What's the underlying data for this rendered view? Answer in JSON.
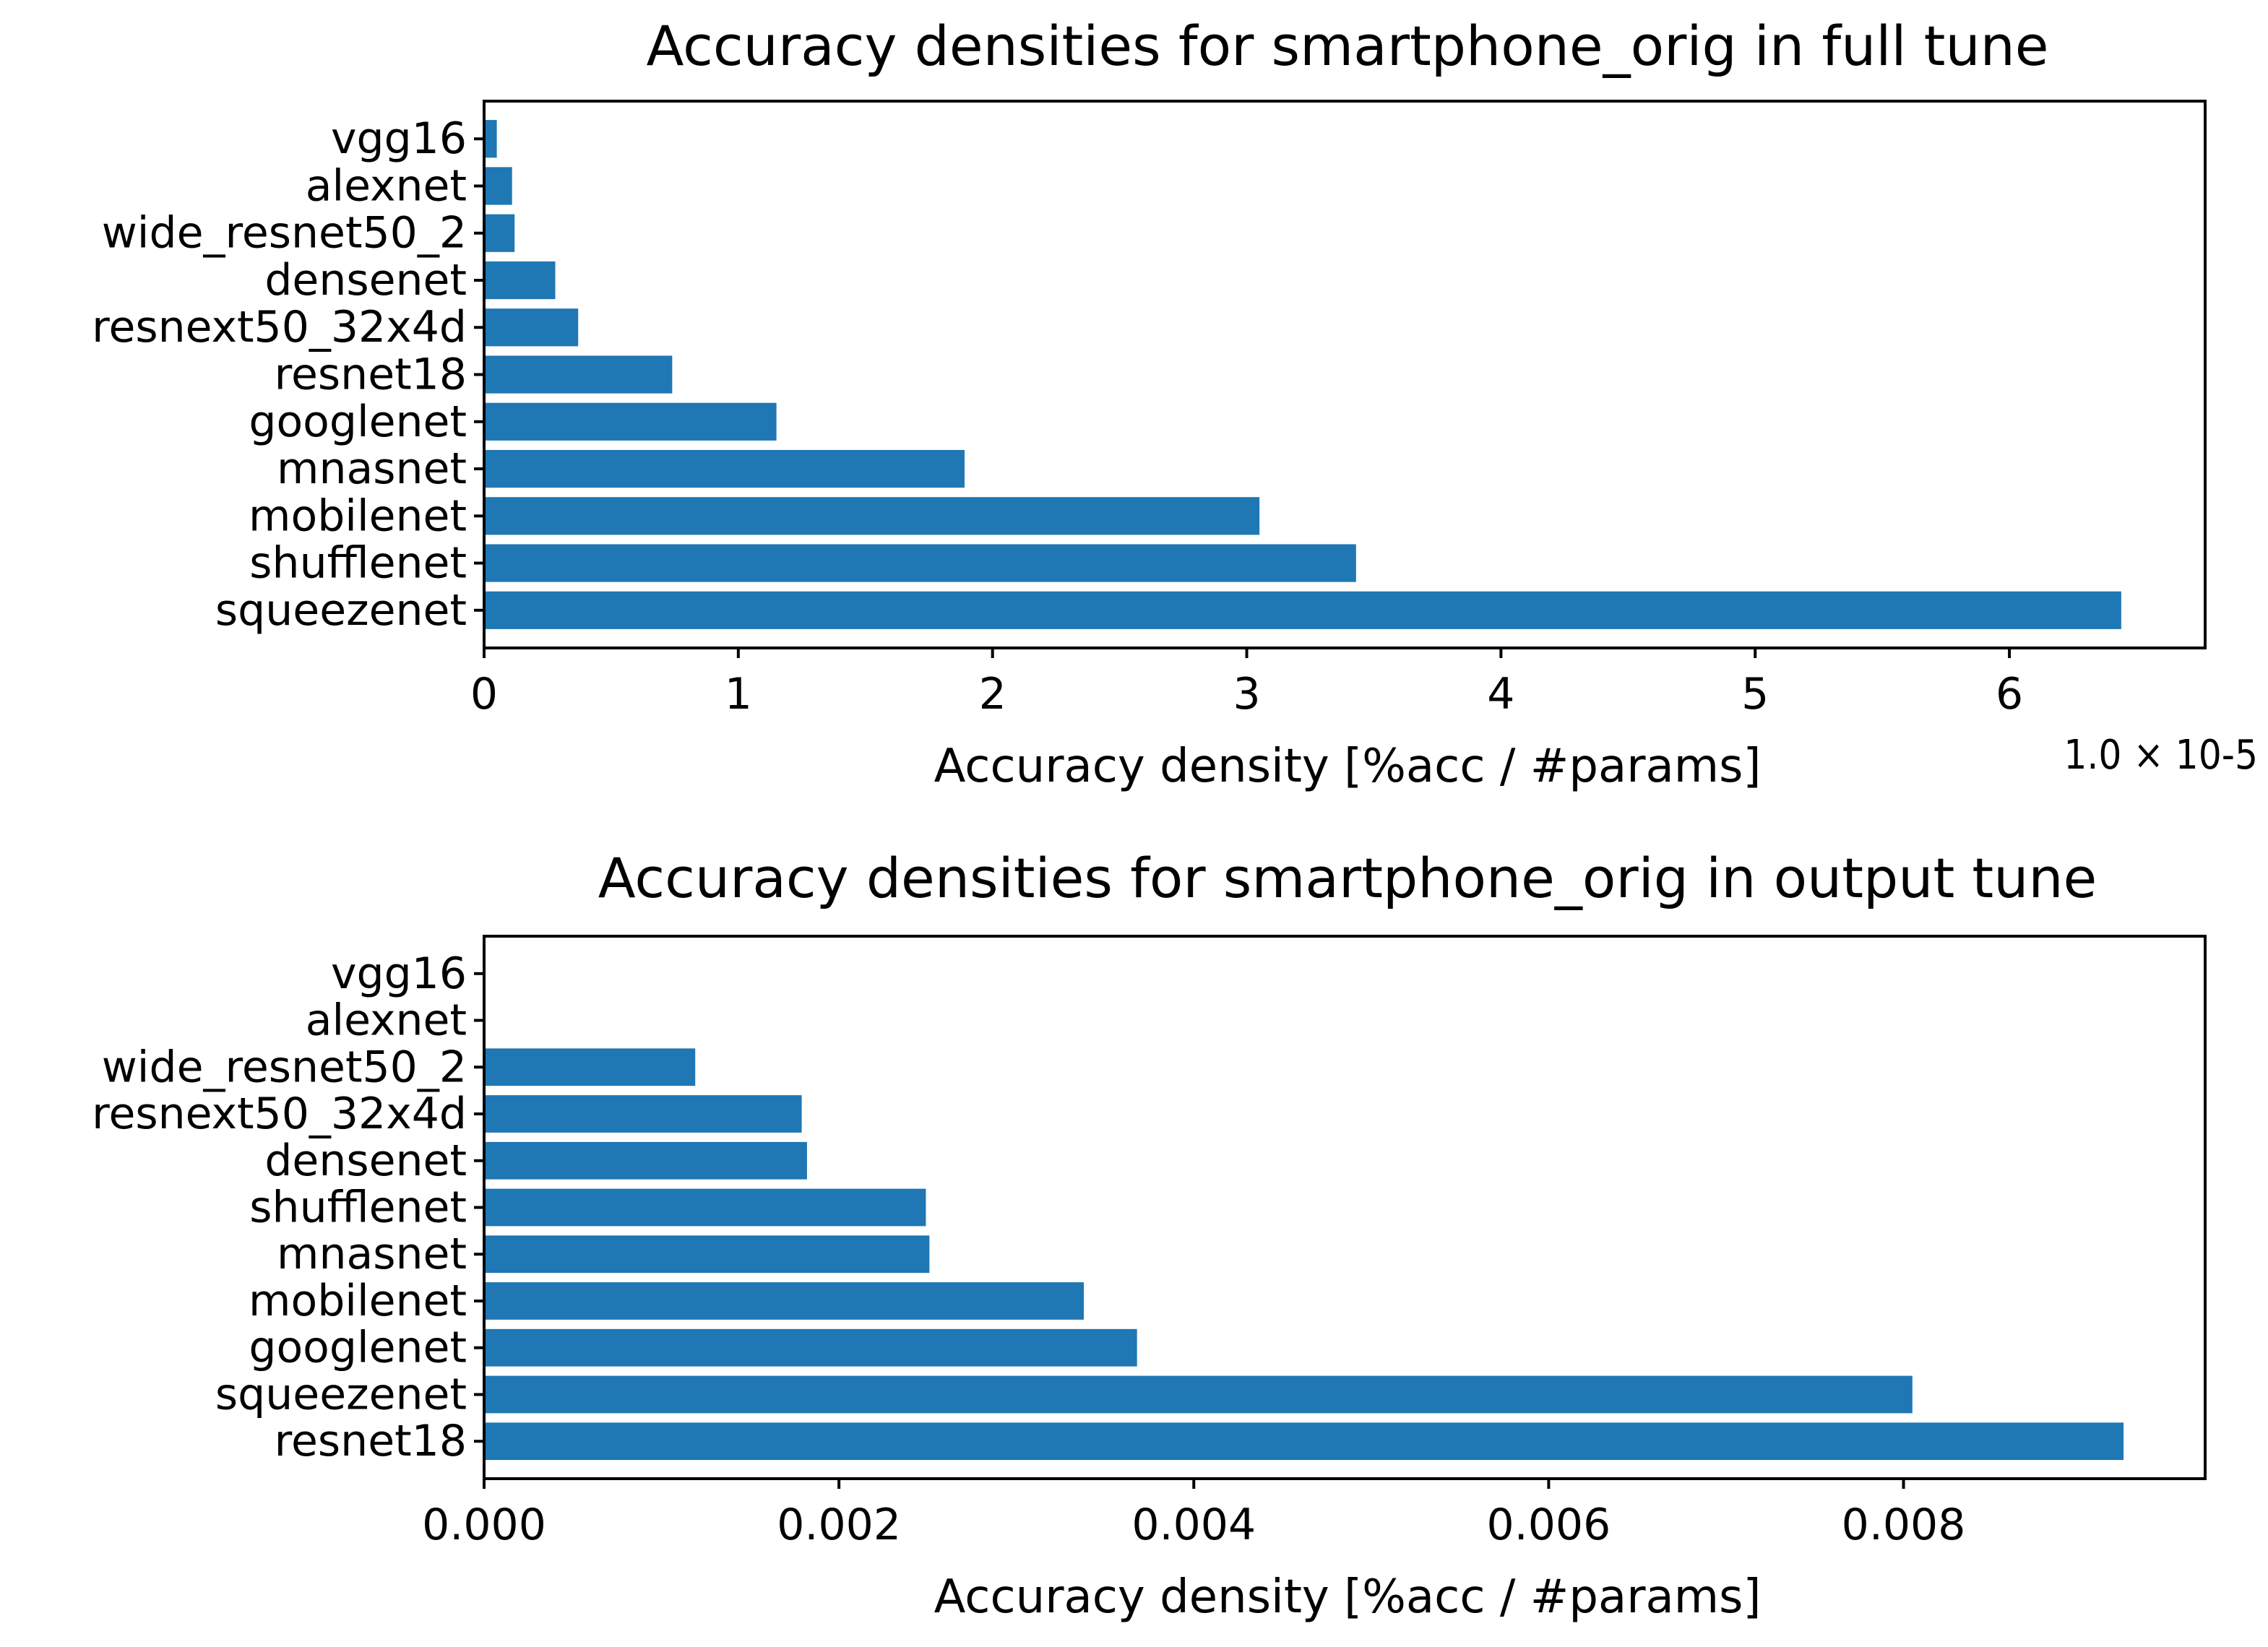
{
  "figure": {
    "bar_color": "#1f77b4",
    "axis_color": "#000000",
    "background": "#ffffff"
  },
  "chart_data": [
    {
      "type": "bar",
      "orientation": "horizontal",
      "title": "Accuracy densities for smartphone_orig in full tune",
      "xlabel": "Accuracy density [%acc / #params]",
      "offset_text": "1.0 × 10-5",
      "categories": [
        "vgg16",
        "alexnet",
        "wide_resnet50_2",
        "densenet",
        "resnext50_32x4d",
        "resnet18",
        "googlenet",
        "mnasnet",
        "mobilenet",
        "shufflenet",
        "squeezenet"
      ],
      "values": [
        0.05,
        0.11,
        0.12,
        0.28,
        0.37,
        0.74,
        1.15,
        1.89,
        3.05,
        3.43,
        6.44
      ],
      "xlim": [
        0,
        6.77
      ],
      "xticks": [
        0,
        1,
        2,
        3,
        4,
        5,
        6
      ],
      "xtick_labels": [
        "0",
        "1",
        "2",
        "3",
        "4",
        "5",
        "6"
      ],
      "grid": false
    },
    {
      "type": "bar",
      "orientation": "horizontal",
      "title": "Accuracy densities for smartphone_orig in output tune",
      "xlabel": "Accuracy density [%acc / #params]",
      "categories": [
        "vgg16",
        "alexnet",
        "wide_resnet50_2",
        "resnext50_32x4d",
        "densenet",
        "shufflenet",
        "mnasnet",
        "mobilenet",
        "googlenet",
        "squeezenet",
        "resnet18"
      ],
      "values": [
        0.0,
        0.0,
        0.00119,
        0.00179,
        0.00182,
        0.00249,
        0.00251,
        0.00338,
        0.00368,
        0.00805,
        0.00924
      ],
      "xlim": [
        0,
        0.0097
      ],
      "xticks": [
        0,
        0.002,
        0.004,
        0.006,
        0.008
      ],
      "xtick_labels": [
        "0.000",
        "0.002",
        "0.004",
        "0.006",
        "0.008"
      ],
      "grid": false
    }
  ]
}
